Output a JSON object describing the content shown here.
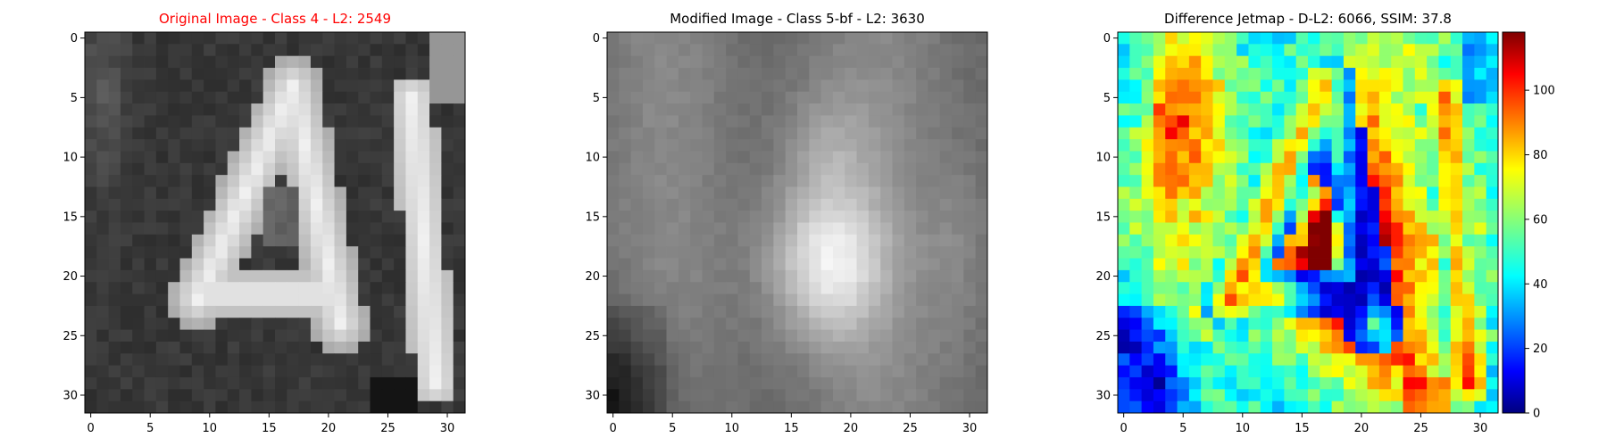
{
  "chart_data": [
    {
      "type": "heatmap",
      "title": "Original Image - Class 4 - L2: 2549",
      "title_color": "#ff0000",
      "colormap": "gray",
      "grid": false,
      "xlim": [
        0,
        31
      ],
      "ylim": [
        0,
        31
      ],
      "x_ticks": [
        0,
        5,
        10,
        15,
        20,
        25,
        30
      ],
      "y_ticks": [
        0,
        5,
        10,
        15,
        20,
        25,
        30
      ],
      "value_range": [
        0,
        255
      ],
      "content_description": "Grayscale 32x32 image of a bright letter 'A' centered with part of a second bright glyph on the right edge, on a dark background"
    },
    {
      "type": "heatmap",
      "title": "Modified Image - Class 5-bf - L2: 3630",
      "title_color": "#000000",
      "colormap": "gray",
      "grid": false,
      "xlim": [
        0,
        31
      ],
      "ylim": [
        0,
        31
      ],
      "x_ticks": [
        0,
        5,
        10,
        15,
        20,
        25,
        30
      ],
      "y_ticks": [
        0,
        5,
        10,
        15,
        20,
        25,
        30
      ],
      "value_range": [
        0,
        255
      ],
      "content_description": "Blurred mid-gray 32x32 image with a soft bright blob near the center-bottom and a dark lower-left corner"
    },
    {
      "type": "heatmap",
      "title": "Difference Jetmap - D-L2: 6066, SSIM: 37.8",
      "title_color": "#000000",
      "colormap": "jet",
      "grid": false,
      "xlim": [
        0,
        31
      ],
      "ylim": [
        0,
        31
      ],
      "x_ticks": [
        0,
        5,
        10,
        15,
        20,
        25,
        30
      ],
      "y_ticks": [
        0,
        5,
        10,
        15,
        20,
        25,
        30
      ],
      "value_range": [
        0,
        118
      ],
      "colorbar": {
        "ticks": [
          0,
          20,
          40,
          60,
          80,
          100
        ],
        "range": [
          0,
          118
        ]
      }
    }
  ]
}
